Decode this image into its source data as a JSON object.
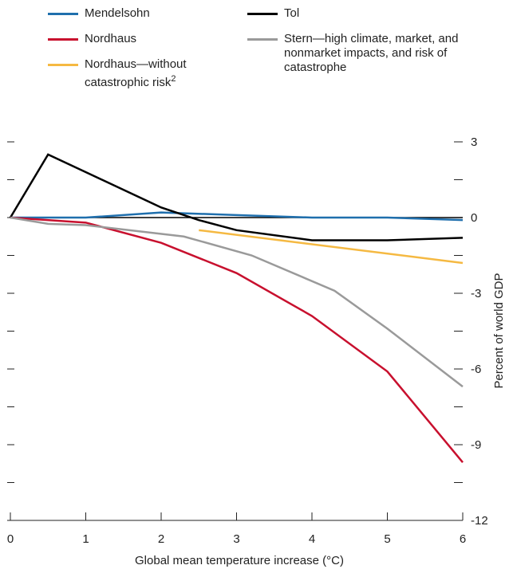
{
  "chart_data": {
    "type": "line",
    "xlabel": "Global mean temperature increase (°C)",
    "ylabel": "Percent of world GDP",
    "xlim": [
      0,
      6
    ],
    "xticks": [
      0,
      1,
      2,
      3,
      4,
      5,
      6
    ],
    "ylim": [
      -12,
      3
    ],
    "yticks": [
      3,
      0,
      -3,
      -6,
      -9,
      -12
    ],
    "yticks_minor": [
      1.5,
      -1.5,
      -4.5,
      -7.5,
      -10.5
    ],
    "series": [
      {
        "name": "Mendelsohn",
        "color": "#1f6fad",
        "x": [
          0,
          1,
          2,
          3,
          4,
          5,
          6
        ],
        "values": [
          0,
          0,
          0.2,
          0.1,
          0,
          0,
          -0.1
        ]
      },
      {
        "name": "Tol",
        "color": "#000000",
        "x": [
          0,
          0.5,
          1,
          2,
          2.5,
          3,
          4,
          5,
          6
        ],
        "values": [
          0,
          2.5,
          1.8,
          0.4,
          -0.1,
          -0.5,
          -0.9,
          -0.9,
          -0.8
        ]
      },
      {
        "name": "Nordhaus",
        "color": "#c8102e",
        "x": [
          0,
          1,
          2,
          3,
          4,
          5,
          6
        ],
        "values": [
          0,
          -0.2,
          -1.0,
          -2.2,
          -3.9,
          -6.1,
          -9.7
        ]
      },
      {
        "name": "Stern—high climate, market, and nonmarket impacts, and risk of catastrophe",
        "color": "#9a9a9a",
        "x": [
          0,
          0.5,
          1,
          2.3,
          3.2,
          4.3,
          5,
          6
        ],
        "values": [
          0,
          -0.25,
          -0.3,
          -0.75,
          -1.5,
          -2.9,
          -4.4,
          -6.7
        ]
      },
      {
        "name": "Nordhaus—without catastrophic risk",
        "footnote": "2",
        "color": "#f5b942",
        "x": [
          2.5,
          6
        ],
        "values": [
          -0.5,
          -1.8
        ]
      }
    ]
  }
}
